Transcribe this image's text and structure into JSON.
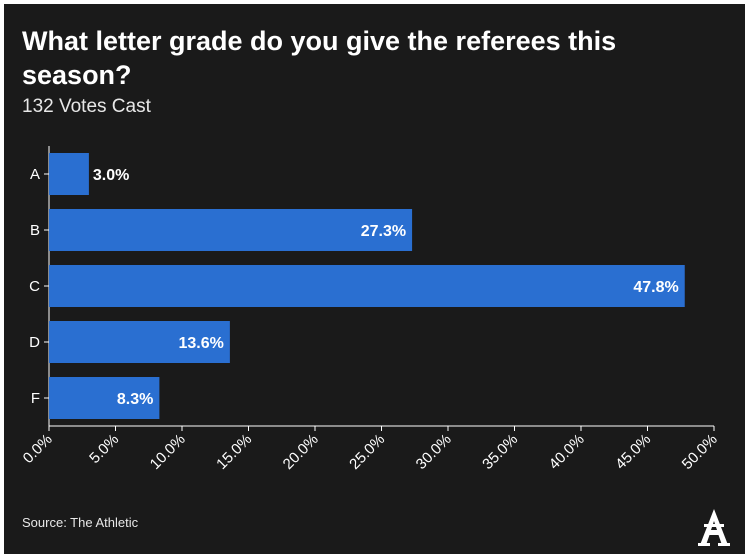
{
  "title": "What letter grade do you give the referees this season?",
  "subtitle": "132 Votes Cast",
  "source": "Source: The Athletic",
  "logo_letter": "A",
  "colors": {
    "background": "#1a1a1a",
    "bar": "#2a6fd1",
    "text": "#ffffff"
  },
  "chart_data": {
    "type": "bar",
    "orientation": "horizontal",
    "categories": [
      "A",
      "B",
      "C",
      "D",
      "F"
    ],
    "values": [
      3.0,
      27.3,
      47.8,
      13.6,
      8.3
    ],
    "data_labels": [
      "3.0%",
      "27.3%",
      "47.8%",
      "13.6%",
      "8.3%"
    ],
    "xlim": [
      0,
      50
    ],
    "xticks": [
      "0.0%",
      "5.0%",
      "10.0%",
      "15.0%",
      "20.0%",
      "25.0%",
      "30.0%",
      "35.0%",
      "40.0%",
      "45.0%",
      "50.0%"
    ],
    "grid": false,
    "legend": "none"
  }
}
